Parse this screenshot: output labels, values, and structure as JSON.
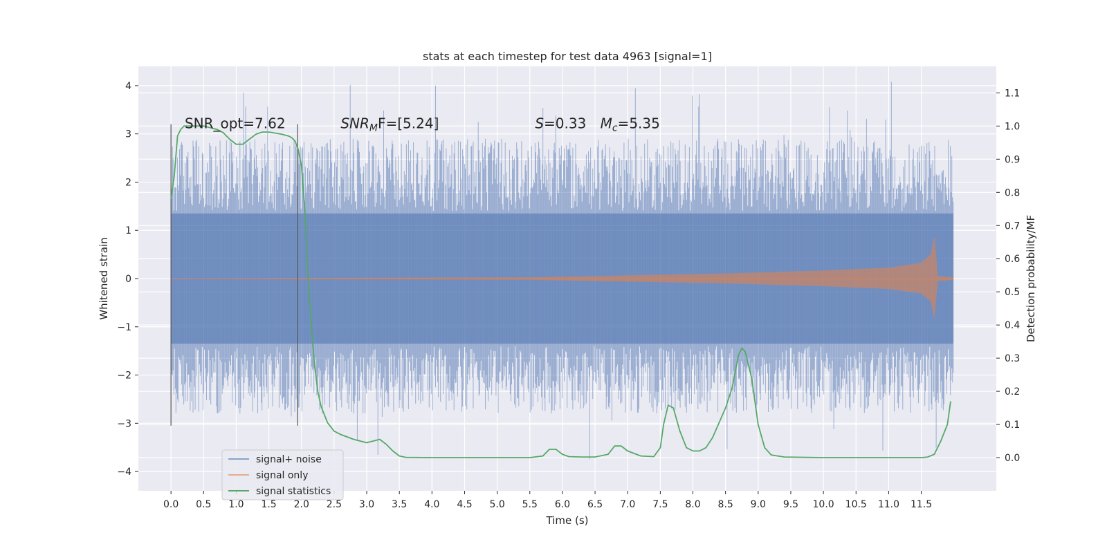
{
  "chart_data": {
    "type": "line",
    "title": "stats at each timestep for test data 4963 [signal=1]",
    "xlabel": "Time (s)",
    "ylabel_left": "Whitened strain",
    "ylabel_right": "Detection probability/MF",
    "xlim": [
      -0.5,
      12.65
    ],
    "ylim_left": [
      -4.4,
      4.4
    ],
    "ylim_right": [
      -0.1,
      1.18
    ],
    "x_ticks": [
      0.0,
      0.5,
      1.0,
      1.5,
      2.0,
      2.5,
      3.0,
      3.5,
      4.0,
      4.5,
      5.0,
      5.5,
      6.0,
      6.5,
      7.0,
      7.5,
      8.0,
      8.5,
      9.0,
      9.5,
      10.0,
      10.5,
      11.0,
      11.5
    ],
    "x_tick_labels": [
      "0.0",
      "0.5",
      "1.0",
      "1.5",
      "2.0",
      "2.5",
      "3.0",
      "3.5",
      "4.0",
      "4.5",
      "5.0",
      "5.5",
      "6.0",
      "6.5",
      "7.0",
      "7.5",
      "8.0",
      "8.5",
      "9.0",
      "9.5",
      "10.0",
      "10.5",
      "11.0",
      "11.5"
    ],
    "y_left_ticks": [
      -4,
      -3,
      -2,
      -1,
      0,
      1,
      2,
      3,
      4
    ],
    "y_left_tick_labels": [
      "−4",
      "−3",
      "−2",
      "−1",
      "0",
      "1",
      "2",
      "3",
      "4"
    ],
    "y_right_ticks": [
      0.0,
      0.1,
      0.2,
      0.3,
      0.4,
      0.5,
      0.6,
      0.7,
      0.8,
      0.9,
      1.0,
      1.1
    ],
    "y_right_tick_labels": [
      "0.0",
      "0.1",
      "0.2",
      "0.3",
      "0.4",
      "0.5",
      "0.6",
      "0.7",
      "0.8",
      "0.9",
      "1.0",
      "1.1"
    ],
    "grid": true,
    "legend_position": "bottom-left",
    "series": [
      {
        "name": "signal+ noise",
        "axis": "left",
        "color": "#4c72b0",
        "t_range": [
          0.0,
          11.99
        ],
        "envelope_core": [
          -1.35,
          1.35
        ],
        "peaks_max": 4.1,
        "peaks_min": -3.9
      },
      {
        "name": "signal only",
        "axis": "left",
        "color": "#dd8452",
        "envelope": {
          "t": [
            0.0,
            5.5,
            7.0,
            8.5,
            10.0,
            11.0,
            11.5,
            11.65,
            11.7,
            11.75,
            11.99
          ],
          "amp": [
            0.0,
            0.02,
            0.06,
            0.1,
            0.16,
            0.22,
            0.32,
            0.5,
            0.85,
            0.05,
            0.02
          ]
        }
      },
      {
        "name": "signal statistics",
        "axis": "right",
        "color": "#55a868",
        "x": [
          0.0,
          0.05,
          0.1,
          0.15,
          0.2,
          0.3,
          0.5,
          0.7,
          0.8,
          0.9,
          1.0,
          1.1,
          1.2,
          1.3,
          1.4,
          1.5,
          1.7,
          1.8,
          1.85,
          1.9,
          1.95,
          2.0,
          2.05,
          2.1,
          2.15,
          2.2,
          2.25,
          2.3,
          2.4,
          2.5,
          2.6,
          2.8,
          3.0,
          3.1,
          3.2,
          3.3,
          3.4,
          3.5,
          3.6,
          4.0,
          4.5,
          5.0,
          5.5,
          5.7,
          5.8,
          5.85,
          5.9,
          6.0,
          6.1,
          6.3,
          6.5,
          6.7,
          6.8,
          6.9,
          7.0,
          7.2,
          7.4,
          7.5,
          7.55,
          7.62,
          7.7,
          7.8,
          7.9,
          8.0,
          8.1,
          8.2,
          8.3,
          8.5,
          8.6,
          8.7,
          8.75,
          8.8,
          8.9,
          9.0,
          9.1,
          9.2,
          9.4,
          10.0,
          10.5,
          11.0,
          11.5,
          11.6,
          11.7,
          11.8,
          11.9,
          11.95
        ],
        "y": [
          0.78,
          0.85,
          0.97,
          0.99,
          1.0,
          1.0,
          1.0,
          0.99,
          0.98,
          0.96,
          0.945,
          0.945,
          0.96,
          0.975,
          0.982,
          0.982,
          0.975,
          0.97,
          0.965,
          0.955,
          0.93,
          0.88,
          0.75,
          0.55,
          0.4,
          0.28,
          0.2,
          0.155,
          0.105,
          0.08,
          0.07,
          0.055,
          0.045,
          0.05,
          0.055,
          0.04,
          0.02,
          0.005,
          0.001,
          0.0,
          0.0,
          0.0,
          0.0,
          0.005,
          0.025,
          0.025,
          0.025,
          0.01,
          0.003,
          0.002,
          0.002,
          0.01,
          0.035,
          0.035,
          0.02,
          0.005,
          0.003,
          0.03,
          0.1,
          0.158,
          0.15,
          0.08,
          0.03,
          0.02,
          0.02,
          0.03,
          0.06,
          0.15,
          0.21,
          0.31,
          0.33,
          0.32,
          0.24,
          0.1,
          0.03,
          0.008,
          0.002,
          0.0,
          0.0,
          0.0,
          0.0,
          0.002,
          0.01,
          0.05,
          0.1,
          0.17
        ]
      }
    ],
    "vlines": [
      {
        "x": 0.0,
        "ymin": -3.05,
        "ymax": 3.2
      },
      {
        "x": 1.94,
        "ymin": -3.05,
        "ymax": 3.2
      }
    ],
    "annotations": [
      {
        "text": "SNR_opt=7.62",
        "x": 0.21,
        "y": 3.2
      },
      {
        "text_parts": [
          "SNR",
          "M",
          "F=[5.24]"
        ],
        "x": 2.6,
        "y": 3.2
      },
      {
        "text_parts": [
          "S",
          "=0.33"
        ],
        "x": 5.58,
        "y": 3.2
      },
      {
        "text_parts": [
          "M",
          "c",
          "=5.35"
        ],
        "x": 6.58,
        "y": 3.2
      }
    ]
  }
}
